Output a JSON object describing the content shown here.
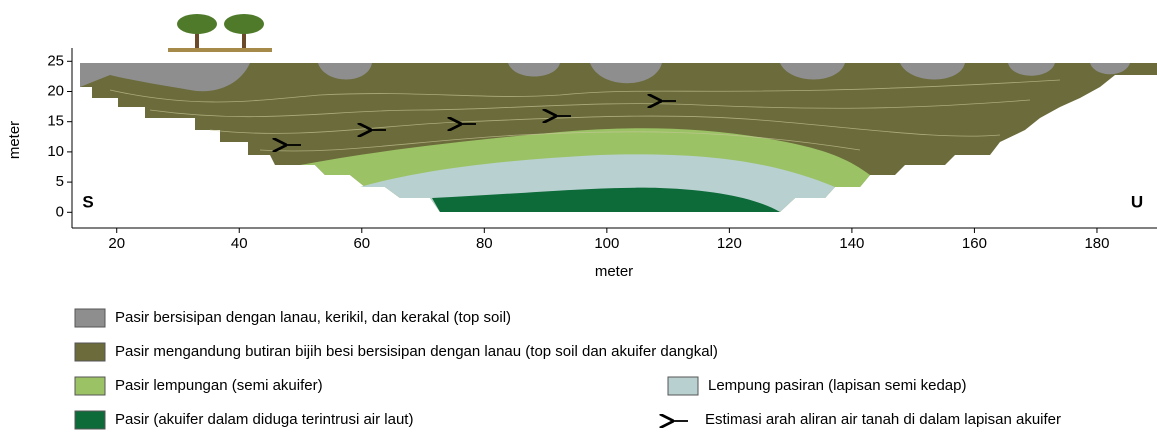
{
  "chart_data": {
    "type": "cross-section",
    "xlabel": "meter",
    "ylabel": "meter",
    "xlim": [
      12.7,
      189.8
    ],
    "ylim": [
      -2.6,
      27.2
    ],
    "xticks": [
      20,
      40,
      60,
      80,
      100,
      120,
      140,
      160,
      180
    ],
    "yticks": [
      0,
      5,
      10,
      15,
      20,
      25
    ],
    "left_label": "S",
    "right_label": "U",
    "legend": [
      {
        "name": "Pasir bersisipan dengan lanau, kerikil, dan kerakal (top soil)",
        "color": "#8e8e8e"
      },
      {
        "name": "Pasir mengandung butiran bijih besi bersisipan dengan lanau (top soil dan akuifer dangkal)",
        "color": "#6b6b3b"
      },
      {
        "name": "Pasir lempungan (semi akuifer)",
        "color": "#9cc266"
      },
      {
        "name": "Lempung pasiran (lapisan semi kedap)",
        "color": "#b9d0d0"
      },
      {
        "name": "Pasir (akuifer dalam diduga terintrusi air laut)",
        "color": "#0c6b39"
      },
      {
        "name": "Estimasi arah aliran air tanah di dalam lapisan akuifer"
      }
    ]
  }
}
